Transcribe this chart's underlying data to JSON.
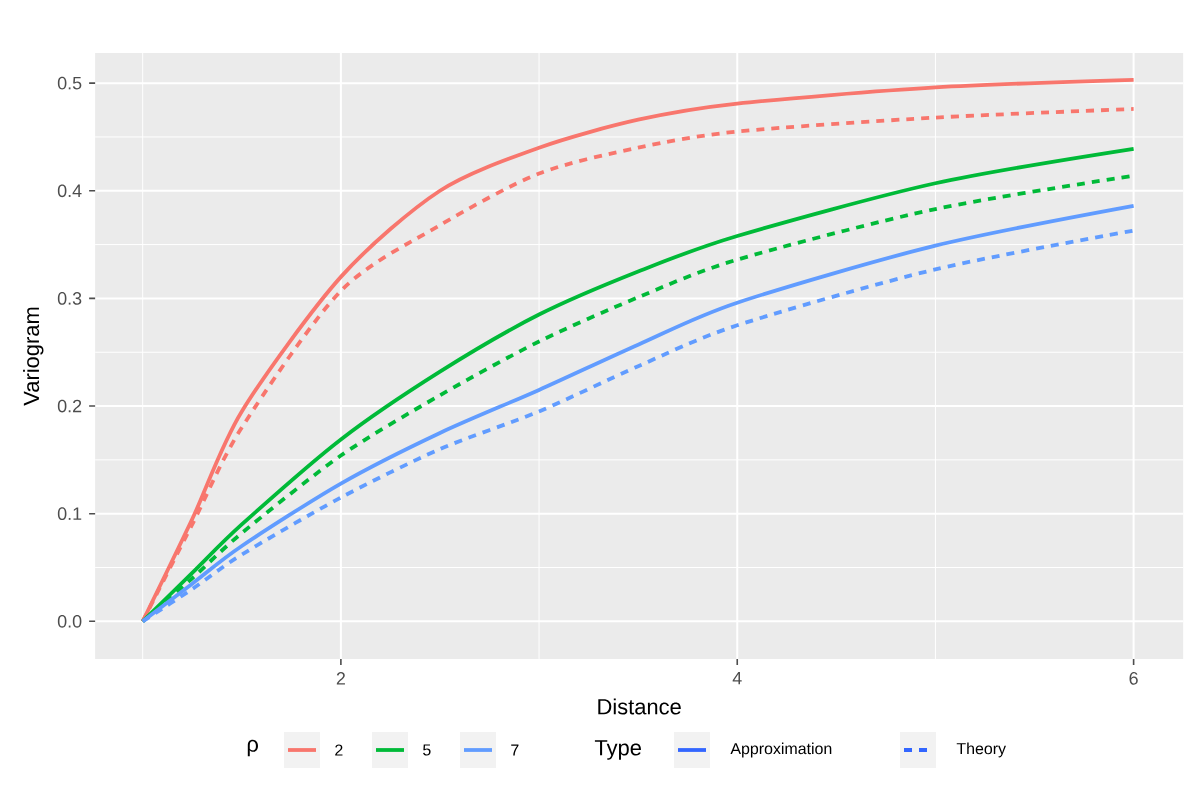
{
  "chart_data": {
    "type": "line",
    "xlabel": "Distance",
    "ylabel": "Variogram",
    "legend_title": "ρ",
    "annotations": [
      "Type",
      "Approximation",
      "Theory"
    ],
    "x": [
      1,
      1.25,
      1.5,
      2,
      2.5,
      3,
      3.5,
      4,
      5,
      6
    ],
    "series": [
      {
        "name": "2",
        "color": "#f8766d",
        "line_style": "solid",
        "values": [
          0,
          0.095,
          0.195,
          0.32,
          0.4,
          0.44,
          0.466,
          0.481,
          0.496,
          0.503
        ]
      },
      {
        "color": "#f8766d",
        "line_style": "dashed",
        "values": [
          0,
          0.09,
          0.18,
          0.307,
          0.368,
          0.416,
          0.44,
          0.455,
          0.468,
          0.476
        ]
      },
      {
        "name": "5",
        "color": "#00ba38",
        "line_style": "solid",
        "values": [
          0,
          0.045,
          0.09,
          0.169,
          0.232,
          0.285,
          0.325,
          0.358,
          0.407,
          0.439
        ]
      },
      {
        "color": "#00ba38",
        "line_style": "dashed",
        "values": [
          0,
          0.04,
          0.082,
          0.154,
          0.21,
          0.26,
          0.301,
          0.336,
          0.383,
          0.414
        ]
      },
      {
        "name": "7",
        "color": "#619cff",
        "line_style": "solid",
        "values": [
          0,
          0.035,
          0.07,
          0.128,
          0.175,
          0.215,
          0.257,
          0.296,
          0.349,
          0.386
        ]
      },
      {
        "color": "#619cff",
        "line_style": "dashed",
        "values": [
          0,
          0.03,
          0.062,
          0.115,
          0.16,
          0.195,
          0.237,
          0.275,
          0.327,
          0.363
        ]
      }
    ],
    "xlim": [
      0.76,
      6.25
    ],
    "ylim": [
      -0.035,
      0.528
    ],
    "xticks": [
      2,
      4,
      6
    ],
    "yticks": [
      {
        "value": 0,
        "label": "0.0"
      },
      {
        "value": 0.1,
        "label": "0.1"
      },
      {
        "value": 0.2,
        "label": "0.2"
      },
      {
        "value": 0.3,
        "label": "0.3"
      },
      {
        "value": 0.4,
        "label": "0.4"
      },
      {
        "value": 0.5,
        "label": "0.5"
      }
    ],
    "grid": true,
    "legend": "bottom"
  }
}
